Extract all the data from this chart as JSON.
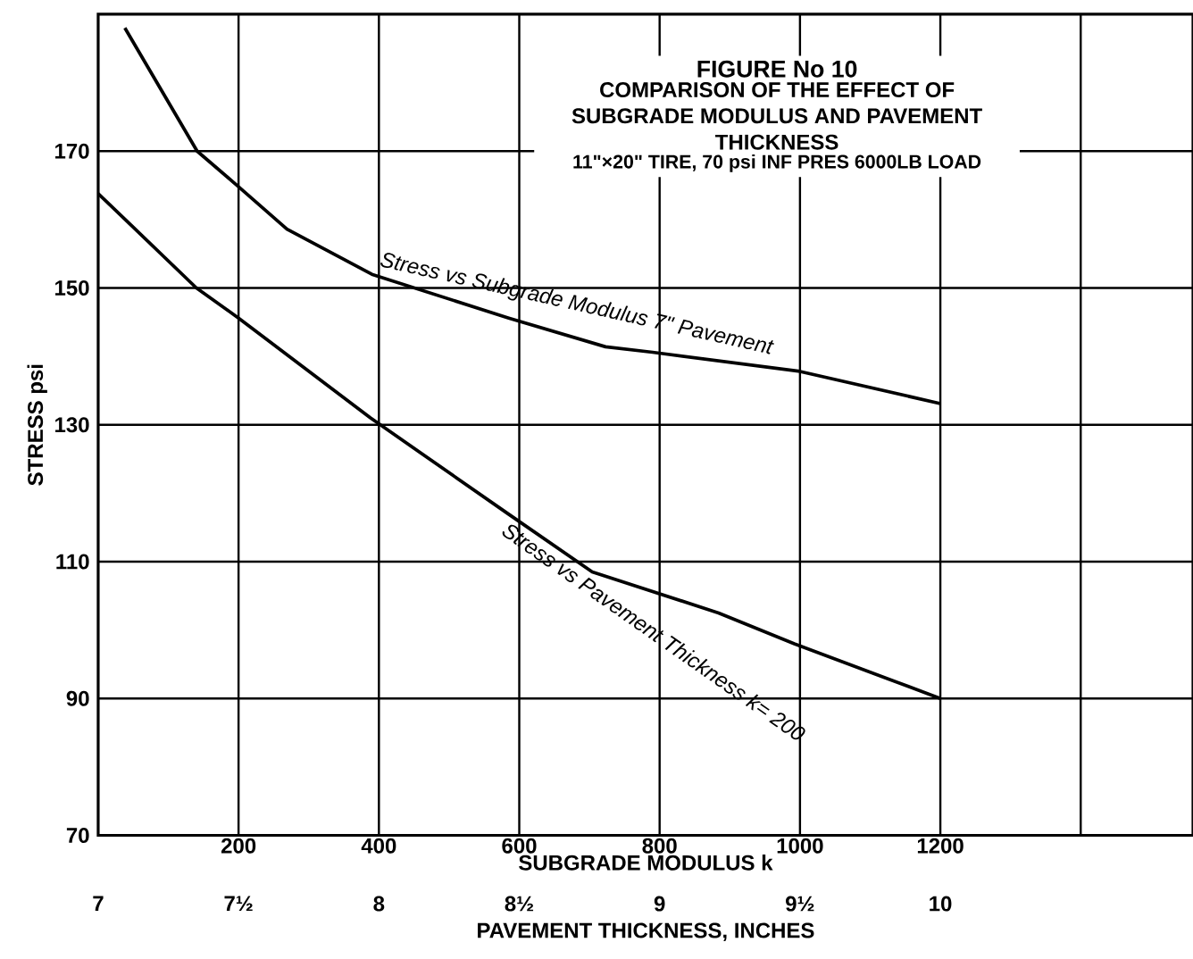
{
  "chart_data": {
    "type": "line",
    "title": "FIGURE No 10",
    "subtitle": "COMPARISON OF THE EFFECT OF SUBGRADE MODULUS AND PAVEMENT THICKNESS",
    "annotations": [
      "11\"×20\" TIRE, 70 psi INF PRES 6000LB LOAD"
    ],
    "xlabel": "SUBGRADE MODULUS k",
    "x2label": "PAVEMENT THICKNESS, INCHES",
    "ylabel": "STRESS psi",
    "xlim": [
      0,
      1560
    ],
    "xticks": [
      200,
      400,
      600,
      800,
      1000,
      1200,
      {
        "value": 1400,
        "label": null
      }
    ],
    "x2lim": [
      7,
      10.9
    ],
    "x2ticks": [
      7,
      {
        "value": 7.5,
        "label": "7½"
      },
      8,
      {
        "value": 8.5,
        "label": "8½"
      },
      9,
      {
        "value": 9.5,
        "label": "9½"
      },
      10
    ],
    "ylim": [
      70,
      190
    ],
    "yticks": [
      70,
      90,
      110,
      130,
      150,
      170
    ],
    "grid": true,
    "marker": "none",
    "line_style": "solid",
    "series": [
      {
        "name": "Stress vs Subgrade Modulus 7\" Pavement",
        "color": "#000000",
        "x": [
          38,
          141,
          200,
          269,
          390,
          585,
          723,
          790,
          1000,
          1200
        ],
        "values": [
          188,
          170,
          164.8,
          158.6,
          152,
          145.6,
          141.4,
          140.6,
          137.8,
          133.1
        ]
      },
      {
        "name": "Stress vs Pavement Thickness k= 200",
        "color": "#000000",
        "axis": "x2",
        "x": [
          7,
          7.35,
          7.5,
          7.97,
          8.46,
          8.76,
          9.21,
          9.48,
          10
        ],
        "values": [
          163.8,
          150,
          145.6,
          131,
          117,
          108.5,
          102.5,
          98,
          90
        ]
      }
    ]
  }
}
